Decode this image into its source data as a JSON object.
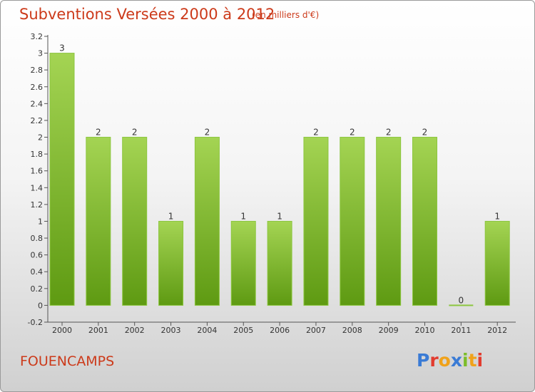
{
  "header": {
    "title": "Subventions Versées 2000 à 2012",
    "subtitle": "(en milliers d'€)"
  },
  "footer": {
    "commune": "FOUENCAMPS",
    "logo_text": "Proxiti"
  },
  "colors": {
    "title": "#cc3a1a",
    "bar_light": "#a4d453",
    "bar_dark": "#5e9a12",
    "logo_letters": [
      "#3a7bd5",
      "#e23b2e",
      "#f0a21a",
      "#3a7bd5",
      "#7cbd2a",
      "#f0a21a",
      "#e23b2e"
    ]
  },
  "chart_data": {
    "type": "bar",
    "title": "Subventions Versées 2000 à 2012",
    "subtitle": "(en milliers d'€)",
    "xlabel": "",
    "ylabel": "",
    "categories": [
      "2000",
      "2001",
      "2002",
      "2003",
      "2004",
      "2005",
      "2006",
      "2007",
      "2008",
      "2009",
      "2010",
      "2011",
      "2012"
    ],
    "values": [
      3,
      2,
      2,
      1,
      2,
      1,
      1,
      2,
      2,
      2,
      2,
      0,
      1
    ],
    "data_labels": [
      "3",
      "2",
      "2",
      "1",
      "2",
      "1",
      "1",
      "2",
      "2",
      "2",
      "2",
      "0",
      "1"
    ],
    "y_ticks": [
      "-0.2",
      "0",
      "0.2",
      "0.4",
      "0.6",
      "0.8",
      "1",
      "1.2",
      "1.4",
      "1.6",
      "1.8",
      "2",
      "2.2",
      "2.4",
      "2.6",
      "2.8",
      "3",
      "3.2"
    ],
    "ylim": [
      -0.2,
      3.2
    ],
    "grid": false,
    "legend": "none"
  }
}
